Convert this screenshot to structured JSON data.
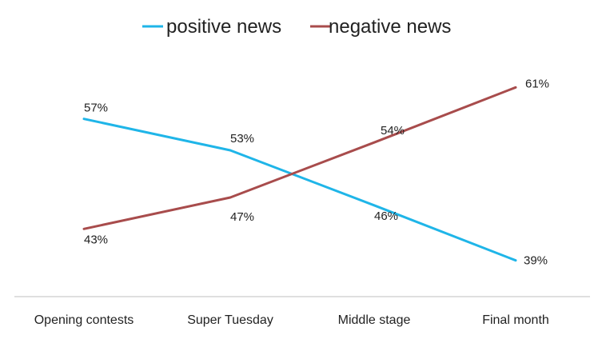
{
  "chart_data": {
    "type": "line",
    "categories": [
      "Opening contests",
      "Super Tuesday",
      "Middle stage",
      "Final month"
    ],
    "series": [
      {
        "name": "positive news",
        "color": "#1fb5e8",
        "values": [
          57,
          53,
          46,
          39
        ],
        "labels": [
          "57%",
          "53%",
          "46%",
          "39%"
        ]
      },
      {
        "name": "negative news",
        "color": "#a84c4c",
        "values": [
          43,
          47,
          54,
          61
        ],
        "labels": [
          "43%",
          "47%",
          "54%",
          "61%"
        ]
      }
    ],
    "title": "",
    "xlabel": "",
    "ylabel": "",
    "ylim": [
      35,
      65
    ],
    "grid": false,
    "legend": "top-center"
  }
}
